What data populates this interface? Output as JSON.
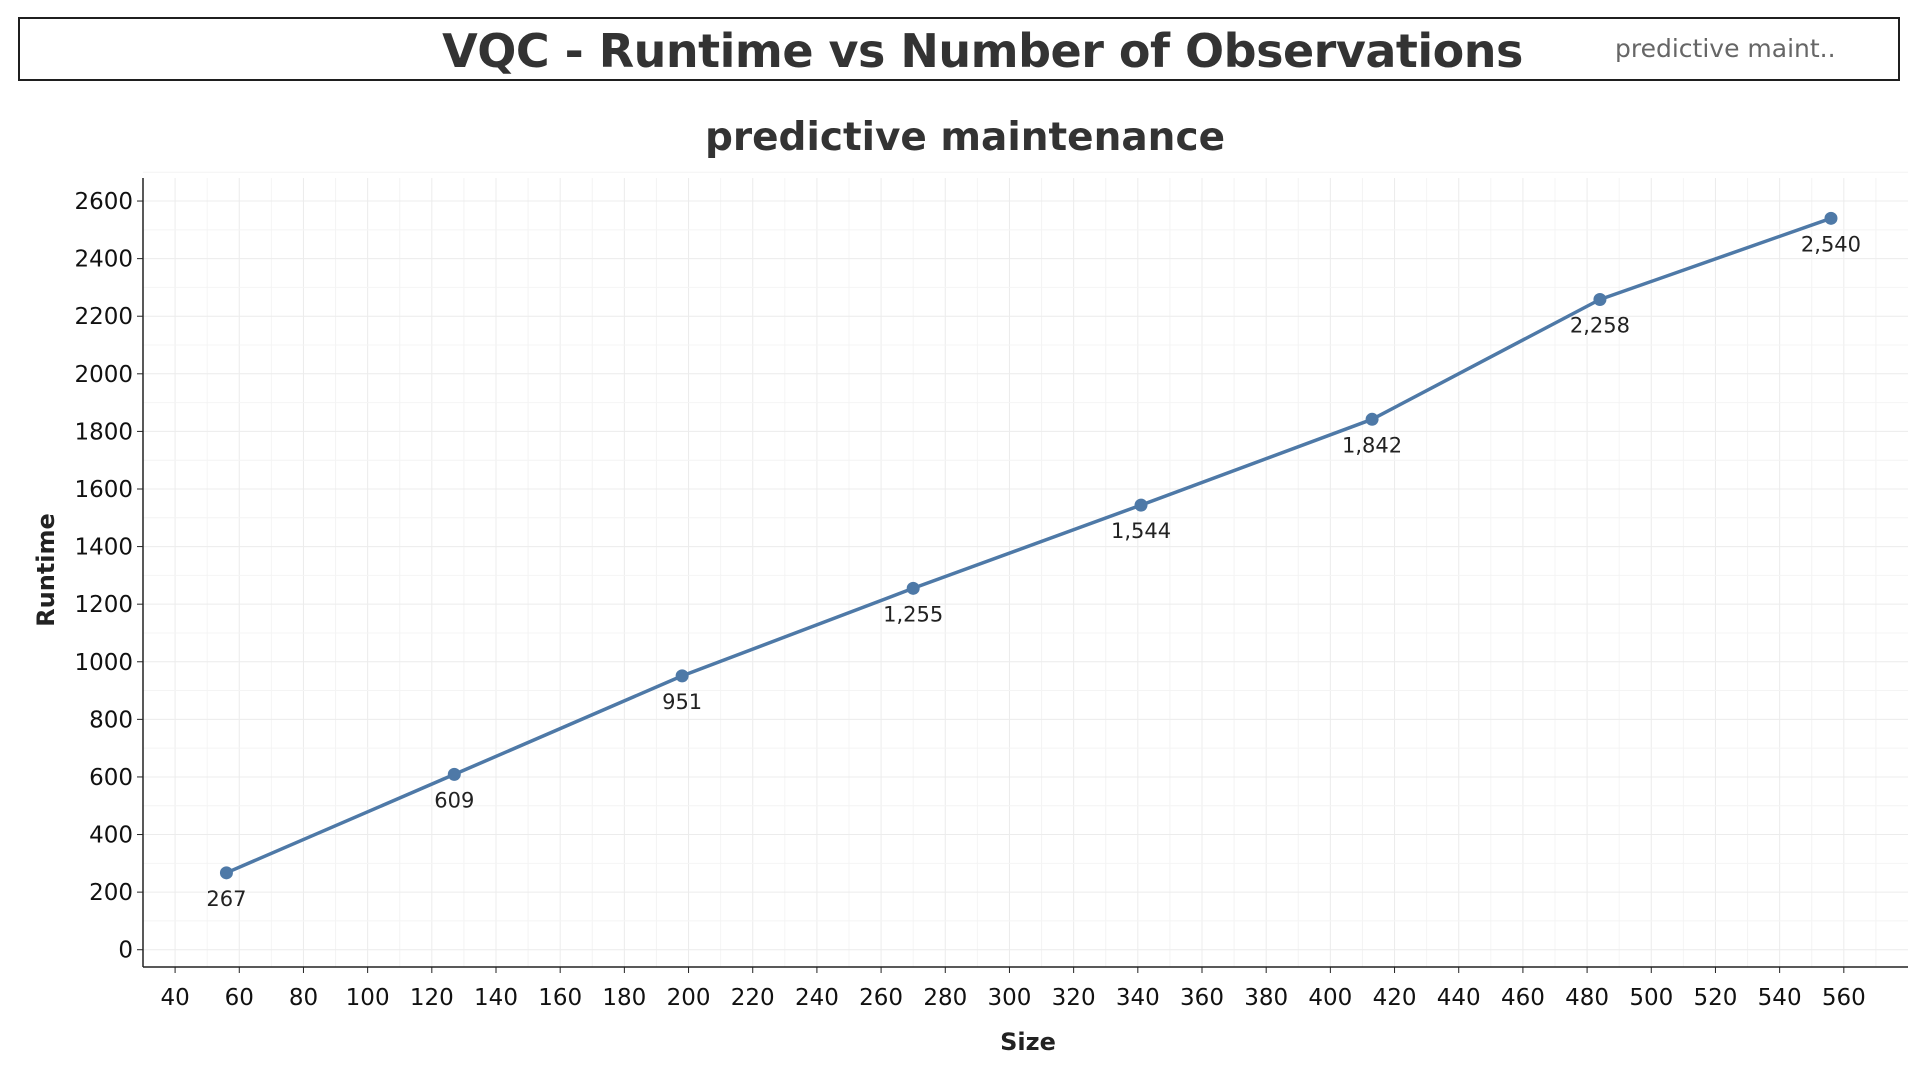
{
  "header": {
    "title": "VQC - Runtime vs Number of Observations",
    "filter_label": "predictive maint.."
  },
  "chart_data": {
    "type": "line",
    "title": "predictive maintenance",
    "xlabel": "Size",
    "ylabel": "Runtime",
    "xlim": [
      30,
      580
    ],
    "ylim": [
      -60,
      2680
    ],
    "x_ticks": [
      40,
      60,
      80,
      100,
      120,
      140,
      160,
      180,
      200,
      220,
      240,
      260,
      280,
      300,
      320,
      340,
      360,
      380,
      400,
      420,
      440,
      460,
      480,
      500,
      520,
      540,
      560
    ],
    "y_ticks": [
      0,
      200,
      400,
      600,
      800,
      1000,
      1200,
      1400,
      1600,
      1800,
      2000,
      2200,
      2400,
      2600
    ],
    "grid": true,
    "legend": "none",
    "line_color": "#4e79a7",
    "series": [
      {
        "x": [
          56,
          127,
          198,
          270,
          341,
          413,
          484,
          556
        ],
        "y": [
          267,
          609,
          951,
          1255,
          1544,
          1842,
          2258,
          2540
        ],
        "labels": [
          "267",
          "609",
          "951",
          "1,255",
          "1,544",
          "1,842",
          "2,258",
          "2,540"
        ]
      }
    ]
  }
}
